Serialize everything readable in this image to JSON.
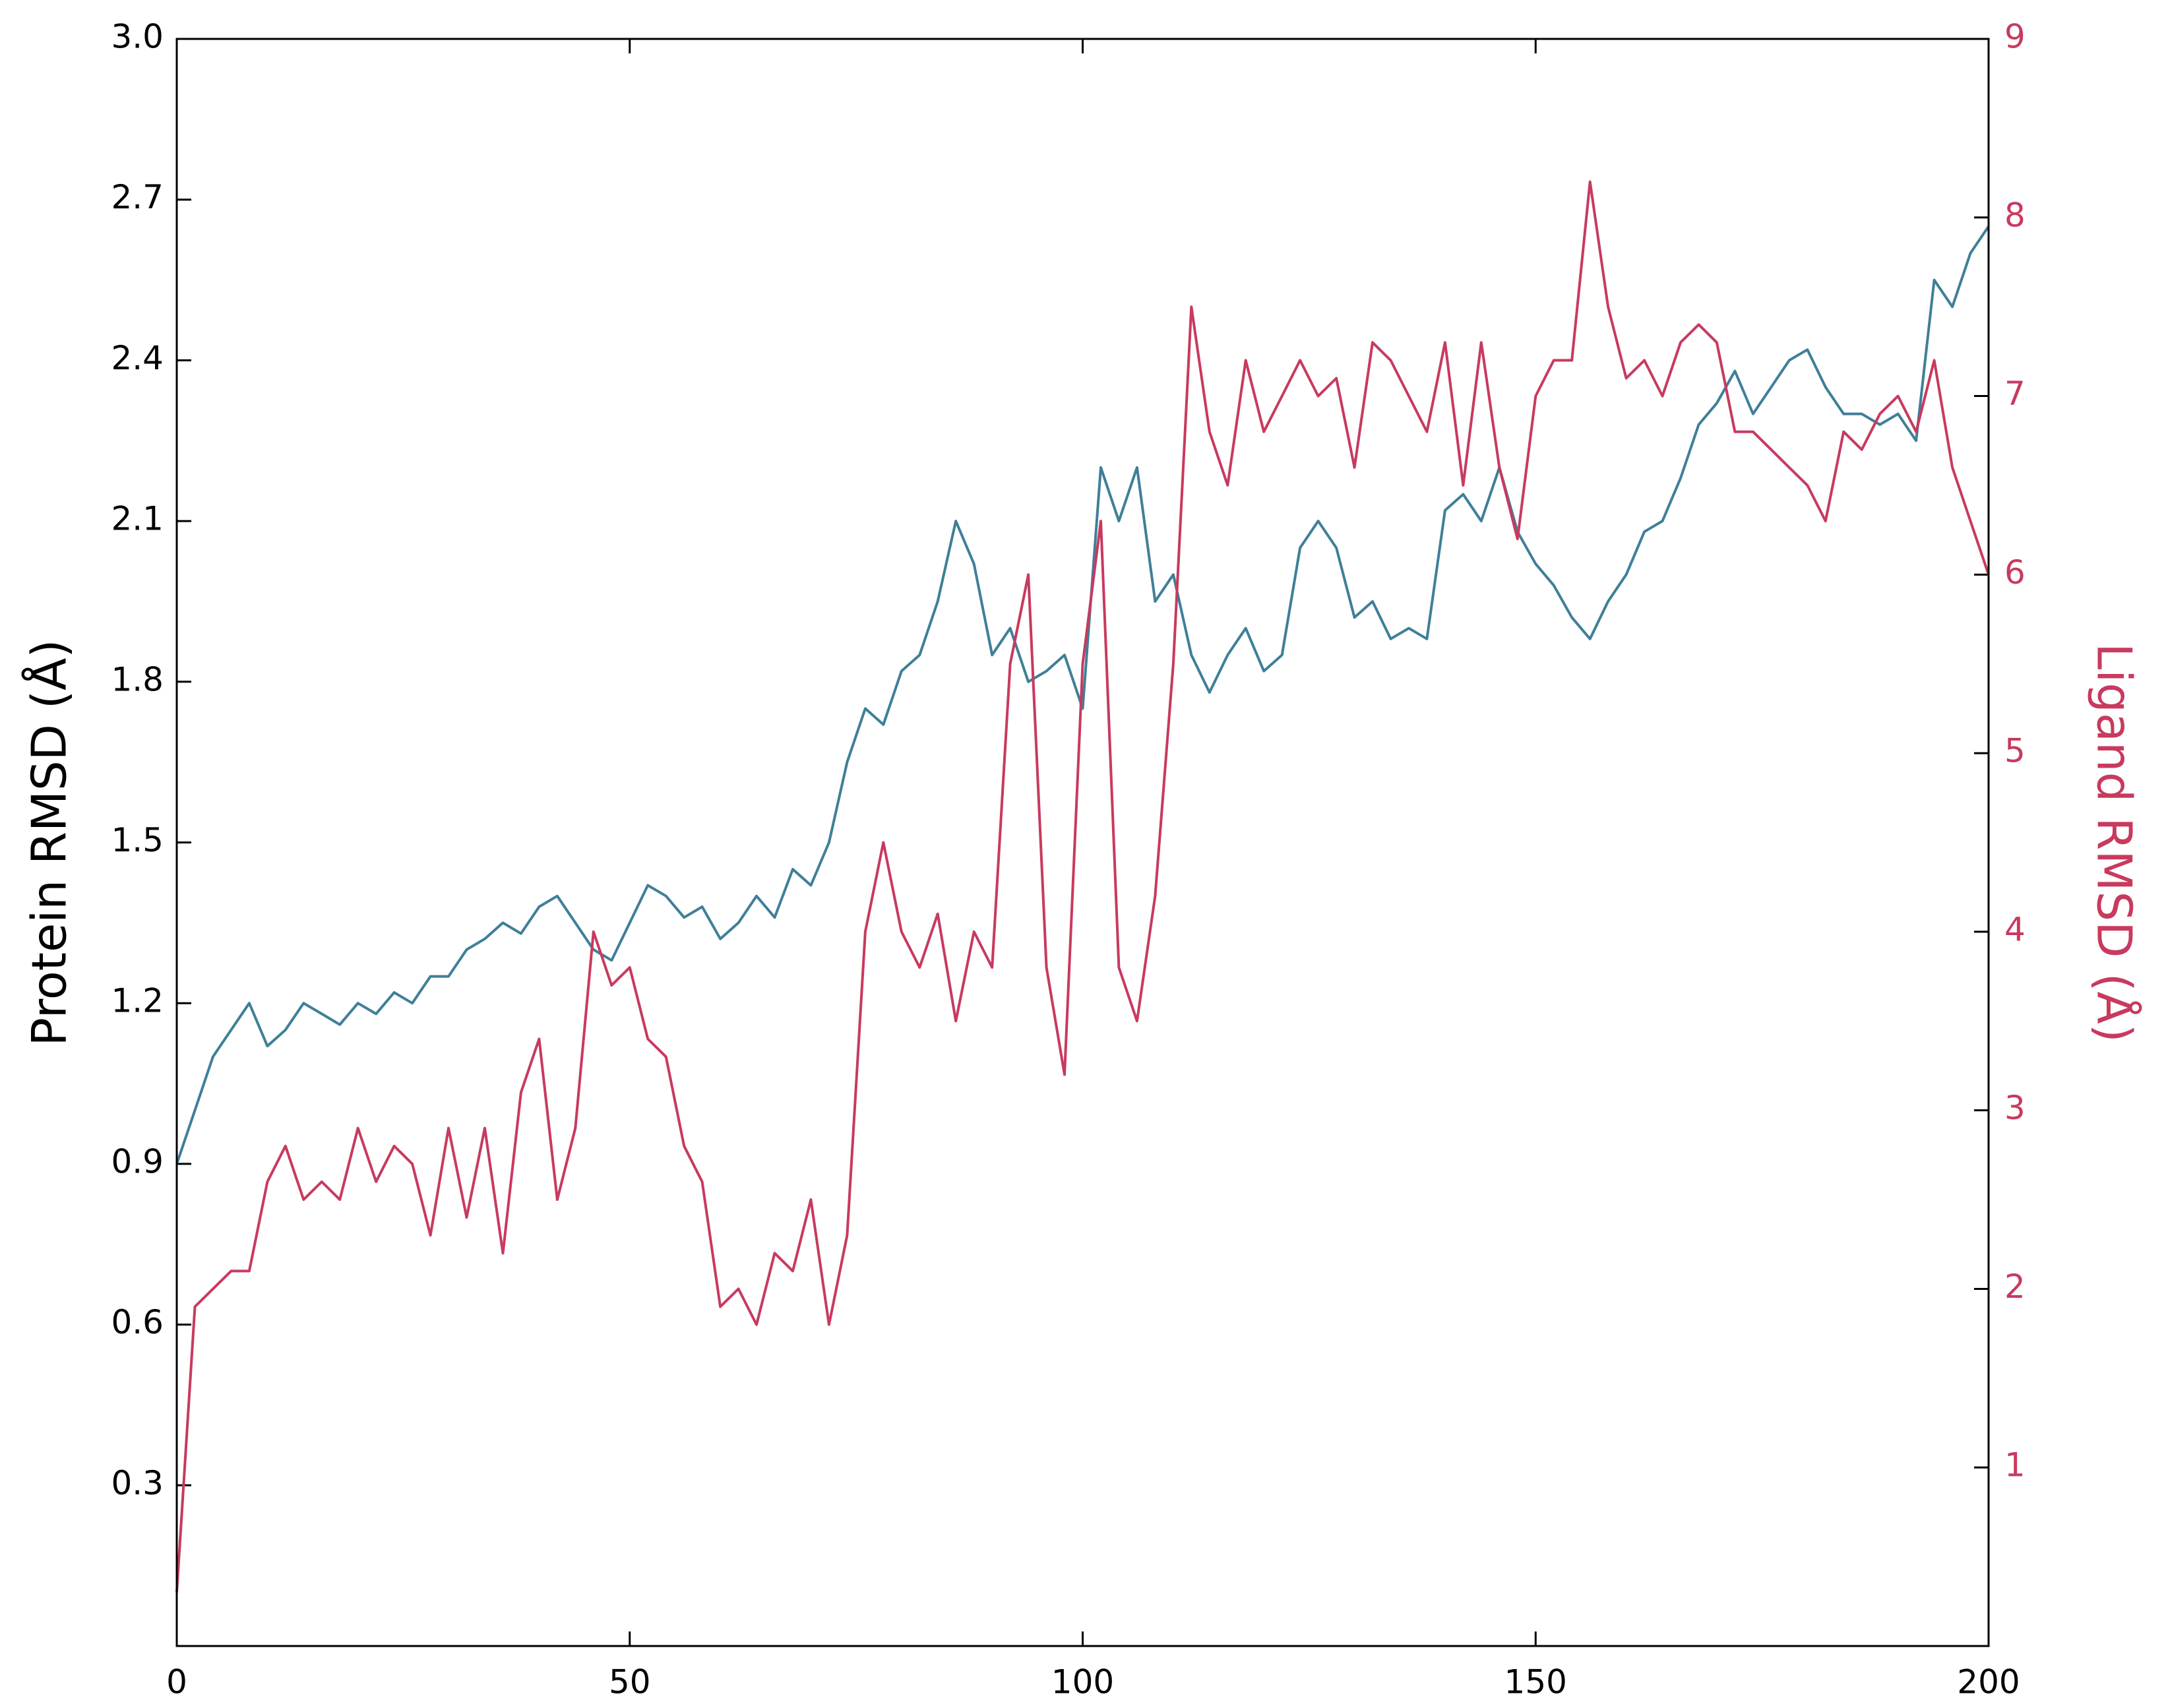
{
  "chart_data": {
    "type": "line",
    "ylabel": "Protein RMSD (Å)",
    "y2label": "Ligand RMSD (Å)",
    "x": [
      0,
      2,
      4,
      6,
      8,
      10,
      12,
      14,
      16,
      18,
      20,
      22,
      24,
      26,
      28,
      30,
      32,
      34,
      36,
      38,
      40,
      42,
      44,
      46,
      48,
      50,
      52,
      54,
      56,
      58,
      60,
      62,
      64,
      66,
      68,
      70,
      72,
      74,
      76,
      78,
      80,
      82,
      84,
      86,
      88,
      90,
      92,
      94,
      96,
      98,
      100,
      102,
      104,
      106,
      108,
      110,
      112,
      114,
      116,
      118,
      120,
      122,
      124,
      126,
      128,
      130,
      132,
      134,
      136,
      138,
      140,
      142,
      144,
      146,
      148,
      150,
      152,
      154,
      156,
      158,
      160,
      162,
      164,
      166,
      168,
      170,
      172,
      174,
      176,
      178,
      180,
      182,
      184,
      186,
      188,
      190,
      192,
      194,
      196,
      198,
      200
    ],
    "series": [
      {
        "color": "#3f7f99",
        "axis": "y",
        "values": [
          0.9,
          1.0,
          1.1,
          1.15,
          1.2,
          1.12,
          1.15,
          1.2,
          1.18,
          1.16,
          1.2,
          1.18,
          1.22,
          1.2,
          1.25,
          1.25,
          1.3,
          1.32,
          1.35,
          1.33,
          1.38,
          1.4,
          1.35,
          1.3,
          1.28,
          1.35,
          1.42,
          1.4,
          1.36,
          1.38,
          1.32,
          1.35,
          1.4,
          1.36,
          1.45,
          1.42,
          1.5,
          1.65,
          1.75,
          1.72,
          1.82,
          1.85,
          1.95,
          2.1,
          2.02,
          1.85,
          1.9,
          1.8,
          1.82,
          1.85,
          1.75,
          2.2,
          2.1,
          2.2,
          1.95,
          2.0,
          1.85,
          1.78,
          1.85,
          1.9,
          1.82,
          1.85,
          2.05,
          2.1,
          2.05,
          1.92,
          1.95,
          1.88,
          1.9,
          1.88,
          2.12,
          2.15,
          2.1,
          2.2,
          2.08,
          2.02,
          1.98,
          1.92,
          1.88,
          1.95,
          2.0,
          2.08,
          2.1,
          2.18,
          2.28,
          2.32,
          2.38,
          2.3,
          2.35,
          2.4,
          2.42,
          2.35,
          2.3,
          2.3,
          2.28,
          2.3,
          2.25,
          2.55,
          2.5,
          2.6,
          2.65
        ]
      },
      {
        "color": "#c83a5e",
        "axis": "y2",
        "values": [
          0.3,
          1.9,
          2.0,
          2.1,
          2.1,
          2.6,
          2.8,
          2.5,
          2.6,
          2.5,
          2.9,
          2.6,
          2.8,
          2.7,
          2.3,
          2.9,
          2.4,
          2.9,
          2.2,
          3.1,
          3.4,
          2.5,
          2.9,
          4.0,
          3.7,
          3.8,
          3.4,
          3.3,
          2.8,
          2.6,
          1.9,
          2.0,
          1.8,
          2.2,
          2.1,
          2.5,
          1.8,
          2.3,
          4.0,
          4.5,
          4.0,
          3.8,
          4.1,
          3.5,
          4.0,
          3.8,
          5.5,
          6.0,
          3.8,
          3.2,
          5.5,
          6.3,
          3.8,
          3.5,
          4.2,
          5.5,
          7.5,
          6.8,
          6.5,
          7.2,
          6.8,
          7.0,
          7.2,
          7.0,
          7.1,
          6.6,
          7.3,
          7.2,
          7.0,
          6.8,
          7.3,
          6.5,
          7.3,
          6.6,
          6.2,
          7.0,
          7.2,
          7.2,
          8.2,
          7.5,
          7.1,
          7.2,
          7.0,
          7.3,
          7.4,
          7.3,
          6.8,
          6.8,
          6.7,
          6.6,
          6.5,
          6.3,
          6.8,
          6.7,
          6.9,
          7.0,
          6.8,
          7.2,
          6.6,
          6.3,
          6.0
        ]
      }
    ],
    "xlim": [
      0,
      200
    ],
    "xticks": [
      0,
      50,
      100,
      150,
      200
    ],
    "ylim": [
      0,
      3
    ],
    "yticks": [
      0.3,
      0.6,
      0.9,
      1.2,
      1.5,
      1.8,
      2.1,
      2.4,
      2.7,
      {
        "value": 3,
        "label": "3.0"
      }
    ],
    "y2lim": [
      0,
      9
    ],
    "y2ticks": [
      1,
      2,
      3,
      4,
      5,
      6,
      7,
      8,
      9
    ],
    "grid": false
  }
}
